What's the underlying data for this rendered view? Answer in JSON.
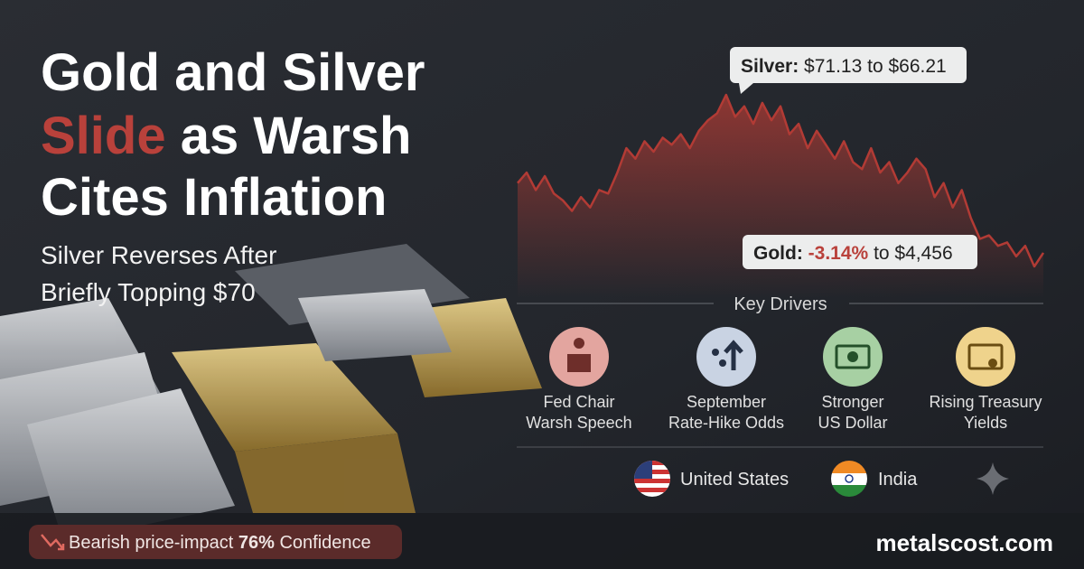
{
  "headline": {
    "title_lines": [
      "Gold and Silver",
      "Slide",
      "as Warsh",
      "Cites Inflation"
    ],
    "subtitle_lines": [
      "Silver Reverses After",
      "Briefly Topping $70"
    ]
  },
  "silver_callout": {
    "label": "Silver:",
    "text": "$71.13 to $66.21"
  },
  "gold_callout": {
    "label": "Gold:",
    "change": "-3.14%",
    "text": "to $4,456"
  },
  "sparkline": {
    "values": [
      68.6,
      68.9,
      68.4,
      68.8,
      68.3,
      68.1,
      67.8,
      68.2,
      67.9,
      68.4,
      68.3,
      68.9,
      69.6,
      69.3,
      69.8,
      69.5,
      69.9,
      69.7,
      70.0,
      69.6,
      70.1,
      70.4,
      70.6,
      71.13,
      70.5,
      70.8,
      70.3,
      70.9,
      70.4,
      70.8,
      70.0,
      70.3,
      69.6,
      70.1,
      69.7,
      69.3,
      69.8,
      69.2,
      69.0,
      69.6,
      68.9,
      69.2,
      68.6,
      68.9,
      69.3,
      69.0,
      68.2,
      68.6,
      67.9,
      68.4,
      67.6,
      67.0,
      67.1,
      66.8,
      66.9,
      66.5,
      66.8,
      66.21,
      66.6
    ]
  },
  "key_drivers": {
    "heading": "Key Drivers",
    "items": [
      [
        "Fed Chair",
        "Warsh Speech"
      ],
      [
        "September",
        "Rate-Hike Odds"
      ],
      [
        "Stronger",
        "US Dollar"
      ],
      [
        "Rising Treasury",
        "Yields"
      ]
    ]
  },
  "regions": [
    "United States",
    "India"
  ],
  "badge": {
    "prefix": "Bearish price-impact",
    "percent": "76%",
    "suffix": "Confidence"
  },
  "site": "metalscost.com"
}
